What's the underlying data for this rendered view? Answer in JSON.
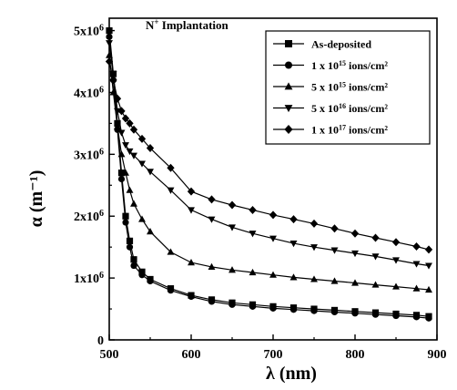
{
  "chart_data": {
    "type": "line",
    "xlabel": "λ (nm)",
    "ylabel": "α (m⁻¹)",
    "xlim": [
      500,
      900
    ],
    "ylim": [
      0,
      5200000
    ],
    "x_ticks": [
      500,
      600,
      700,
      800,
      900
    ],
    "x_tick_labels": [
      "500",
      "600",
      "700",
      "800",
      "900"
    ],
    "y_ticks": [
      0,
      1000000,
      2000000,
      3000000,
      4000000,
      5000000
    ],
    "y_tick_labels": [
      {
        "base": "0",
        "exp": ""
      },
      {
        "base": "1x10",
        "exp": "6"
      },
      {
        "base": "2x10",
        "exp": "6"
      },
      {
        "base": "3x10",
        "exp": "6"
      },
      {
        "base": "4x10",
        "exp": "6"
      },
      {
        "base": "5x10",
        "exp": "6"
      }
    ],
    "annotation": {
      "pre": "N",
      "sup": "+",
      "post": " Implantation"
    },
    "legend_position": "top-right",
    "grid": false,
    "series": [
      {
        "name": "As-deposited",
        "legend": {
          "pre": "As-deposited",
          "sup": "",
          "post": ""
        },
        "marker": "square",
        "x": [
          500,
          505,
          510,
          515,
          520,
          525,
          530,
          540,
          550,
          575,
          600,
          625,
          650,
          675,
          700,
          725,
          750,
          775,
          800,
          825,
          850,
          875,
          890
        ],
        "y": [
          5000000,
          4300000,
          3500000,
          2700000,
          2000000,
          1600000,
          1300000,
          1100000,
          980000,
          830000,
          720000,
          650000,
          600000,
          570000,
          540000,
          520000,
          500000,
          480000,
          460000,
          440000,
          420000,
          400000,
          380000
        ]
      },
      {
        "name": "1 x 10^15 ions/cm^2",
        "legend": {
          "pre": "1 x 10",
          "sup": "15",
          "post": " ions/cm²"
        },
        "marker": "circle",
        "x": [
          500,
          505,
          510,
          515,
          520,
          525,
          530,
          540,
          550,
          575,
          600,
          625,
          650,
          675,
          700,
          725,
          750,
          775,
          800,
          825,
          850,
          875,
          890
        ],
        "y": [
          4900000,
          4200000,
          3400000,
          2600000,
          1900000,
          1500000,
          1200000,
          1050000,
          950000,
          800000,
          700000,
          620000,
          570000,
          540000,
          510000,
          490000,
          470000,
          450000,
          430000,
          410000,
          390000,
          370000,
          350000
        ]
      },
      {
        "name": "5 x 10^15 ions/cm^2",
        "legend": {
          "pre": "5 x 10",
          "sup": "15",
          "post": " ions/cm²"
        },
        "marker": "triangle-up",
        "x": [
          500,
          505,
          510,
          515,
          520,
          525,
          530,
          540,
          550,
          575,
          600,
          625,
          650,
          675,
          700,
          725,
          750,
          775,
          800,
          825,
          850,
          875,
          890
        ],
        "y": [
          4600000,
          4000000,
          3450000,
          3000000,
          2700000,
          2420000,
          2200000,
          1950000,
          1750000,
          1420000,
          1250000,
          1180000,
          1130000,
          1090000,
          1050000,
          1010000,
          980000,
          950000,
          920000,
          890000,
          860000,
          830000,
          810000
        ]
      },
      {
        "name": "5 x 10^16 ions/cm^2",
        "legend": {
          "pre": "5 x 10",
          "sup": "16",
          "post": " ions/cm²"
        },
        "marker": "triangle-down",
        "x": [
          500,
          505,
          510,
          515,
          520,
          525,
          530,
          540,
          550,
          575,
          600,
          625,
          650,
          675,
          700,
          725,
          750,
          775,
          800,
          825,
          850,
          875,
          890
        ],
        "y": [
          4800000,
          4300000,
          3700000,
          3350000,
          3150000,
          3050000,
          2980000,
          2850000,
          2720000,
          2420000,
          2100000,
          1950000,
          1820000,
          1720000,
          1640000,
          1560000,
          1500000,
          1450000,
          1400000,
          1350000,
          1290000,
          1230000,
          1200000
        ]
      },
      {
        "name": "1 x 10^17 ions/cm^2",
        "legend": {
          "pre": "1 x 10",
          "sup": "17",
          "post": " ions/cm²"
        },
        "marker": "diamond",
        "x": [
          500,
          505,
          510,
          515,
          520,
          525,
          530,
          540,
          550,
          575,
          600,
          625,
          650,
          675,
          700,
          725,
          750,
          775,
          800,
          825,
          850,
          875,
          890
        ],
        "y": [
          4500000,
          4200000,
          3900000,
          3700000,
          3580000,
          3500000,
          3400000,
          3250000,
          3100000,
          2780000,
          2400000,
          2270000,
          2180000,
          2100000,
          2020000,
          1950000,
          1880000,
          1800000,
          1720000,
          1650000,
          1580000,
          1510000,
          1460000
        ]
      }
    ]
  }
}
